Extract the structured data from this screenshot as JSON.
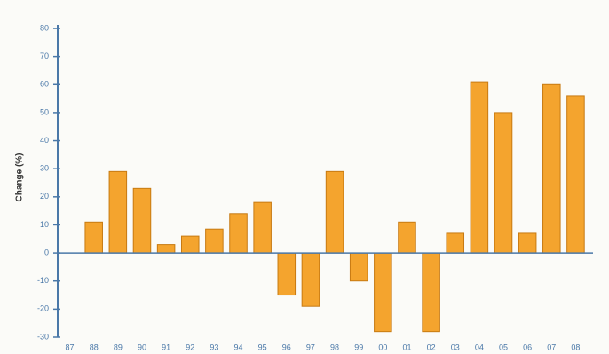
{
  "chart_data": {
    "type": "bar",
    "y_label": "Change (%)",
    "categories": [
      "87",
      "88",
      "89",
      "90",
      "91",
      "92",
      "93",
      "94",
      "95",
      "96",
      "97",
      "98",
      "99",
      "00",
      "01",
      "02",
      "03",
      "04",
      "05",
      "06",
      "07",
      "08"
    ],
    "values": [
      null,
      11,
      29,
      23,
      3,
      6,
      8.5,
      14,
      18,
      -15,
      -19,
      29,
      -10,
      -28,
      11,
      -28,
      7,
      61,
      50,
      7,
      60,
      56
    ],
    "color": "#f4a42e",
    "ylim": [
      -30,
      80
    ],
    "yticks": [
      -30,
      -20,
      -10,
      0,
      10,
      20,
      30,
      40,
      50,
      60,
      70,
      80
    ],
    "grid": false
  }
}
